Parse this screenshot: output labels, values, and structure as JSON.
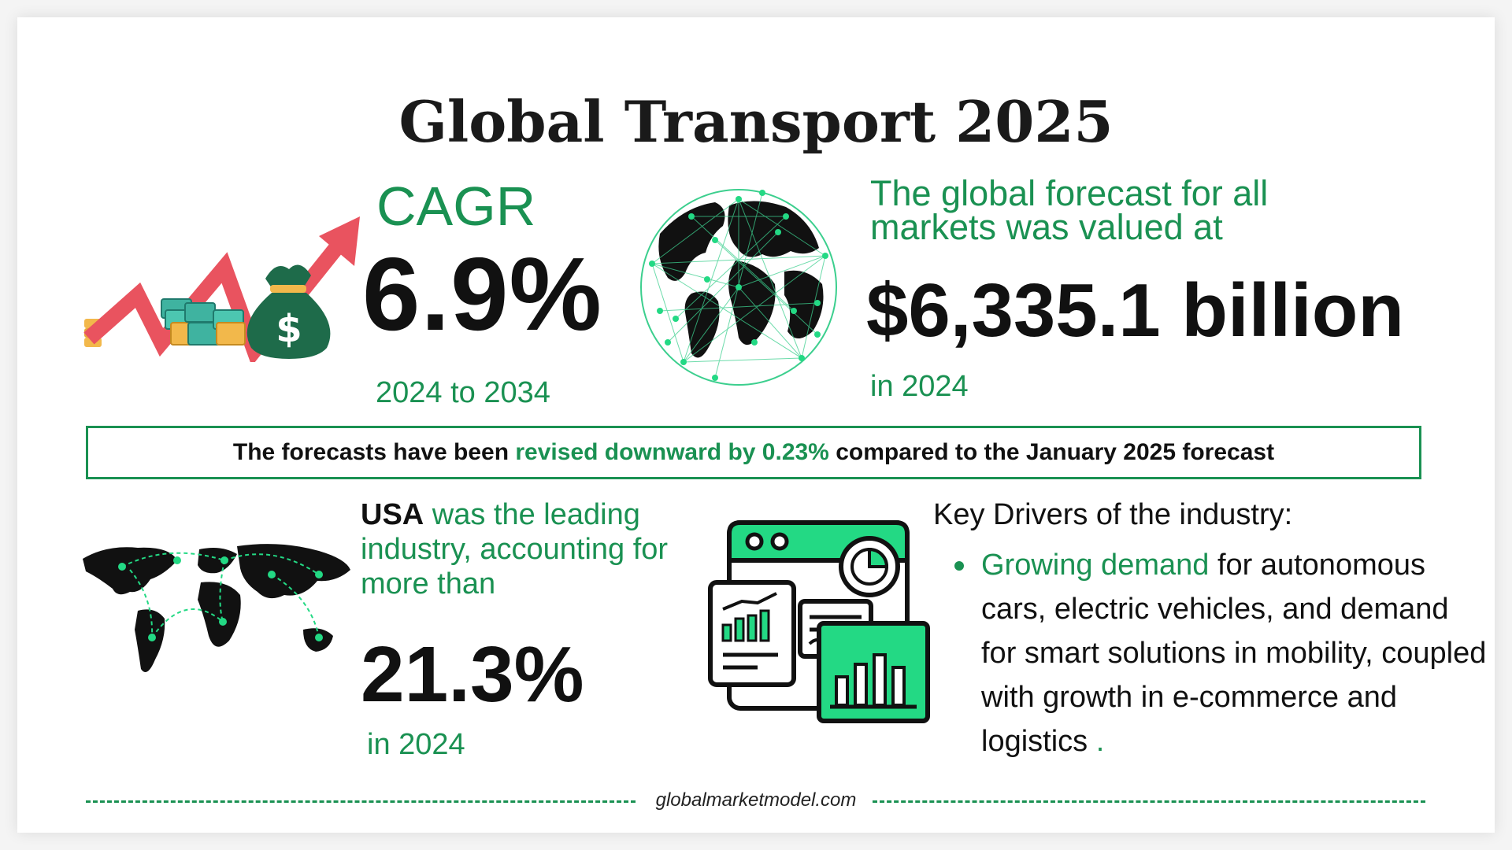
{
  "title": "Global Transport 2025",
  "cagr": {
    "label": "CAGR",
    "value": "6.9%",
    "range": "2024 to 2034"
  },
  "forecast": {
    "intro": "The global forecast for all markets was valued at",
    "value": "$6,335.1 billion",
    "year": "in 2024"
  },
  "revision": {
    "prefix": "The forecasts have been ",
    "highlight": "revised downward by 0.23%",
    "suffix": " compared to the January 2025 forecast"
  },
  "usa": {
    "country": "USA",
    "text": " was the leading industry, accounting for more than",
    "value": "21.3%",
    "year": "in 2024"
  },
  "drivers": {
    "title": "Key Drivers of the industry:",
    "item_highlight": "Growing demand",
    "item_text": " for autonomous cars, electric vehicles, and demand for smart solutions in mobility, coupled with growth in e-commerce and logistics",
    "item_end": " ."
  },
  "footer": {
    "website": "globalmarketmodel.com"
  },
  "colors": {
    "accent": "#1a9152",
    "bright_green": "#23d984",
    "arrow_red": "#e9535f",
    "dark": "#111111"
  }
}
